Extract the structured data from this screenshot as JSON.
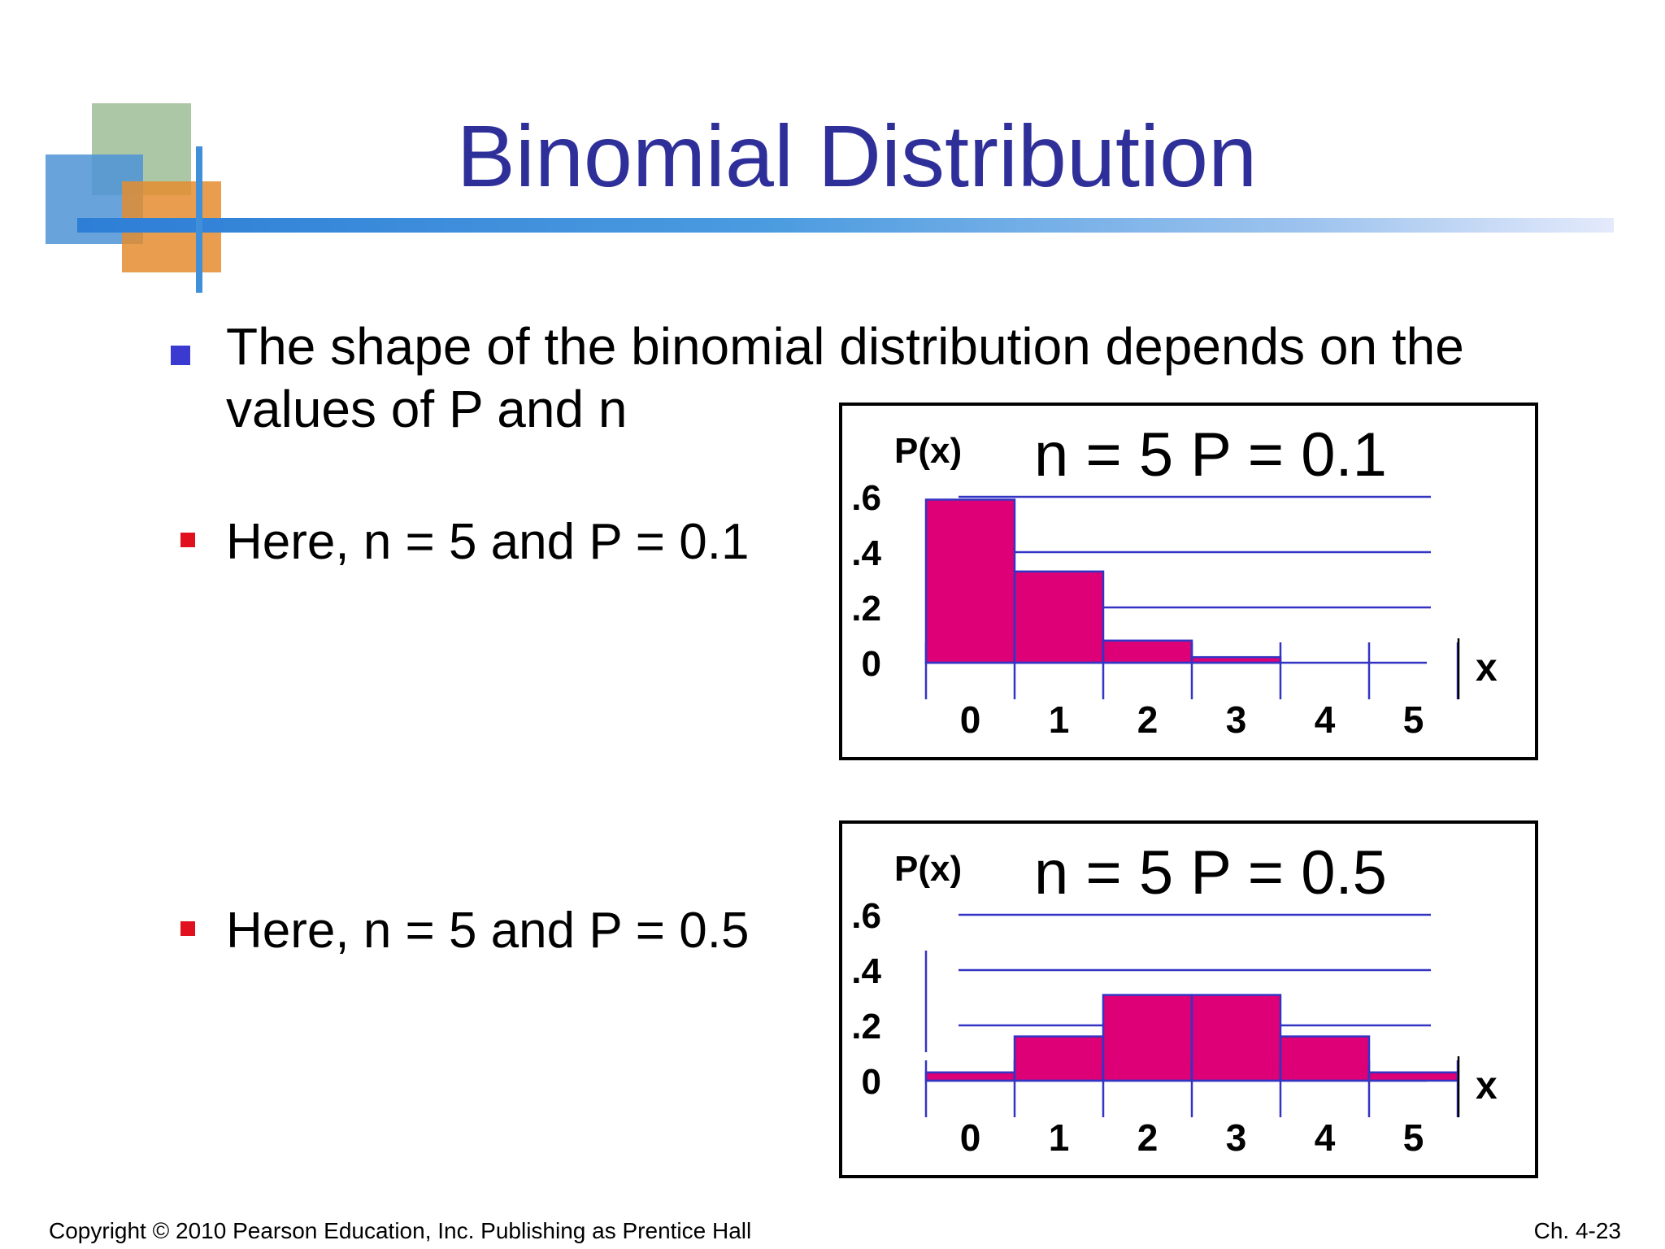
{
  "slide": {
    "title": "Binomial Distribution",
    "main_bullet": "The shape of the binomial distribution depends on the values of  P  and  n",
    "sub_bullets": [
      "Here, n = 5 and P = 0.1",
      "Here, n = 5 and P = 0.5"
    ],
    "footer_left": "Copyright © 2010 Pearson Education, Inc. Publishing as Prentice Hall",
    "footer_right": "Ch. 4-23"
  },
  "colors": {
    "title": "#2f2f9a",
    "bar_fill": "#dd0077",
    "bar_stroke": "#3434c4",
    "gridline": "#3434c4",
    "main_bullet": "#3a3ad0",
    "sub_bullet": "#e0101f"
  },
  "chart_data": [
    {
      "type": "bar",
      "title": "n = 5  P = 0.1",
      "ylabel": "P(x)",
      "xlabel": "x",
      "categories": [
        "0",
        "1",
        "2",
        "3",
        "4",
        "5"
      ],
      "values": [
        0.59,
        0.33,
        0.08,
        0.02,
        0.0,
        0.0
      ],
      "y_ticks": [
        ".6",
        ".4",
        ".2",
        "0"
      ],
      "y_tick_values": [
        0.6,
        0.4,
        0.2,
        0
      ],
      "ylim": [
        0,
        0.6
      ],
      "grid": true
    },
    {
      "type": "bar",
      "title": "n = 5  P = 0.5",
      "ylabel": "P(x)",
      "xlabel": "x",
      "categories": [
        "0",
        "1",
        "2",
        "3",
        "4",
        "5"
      ],
      "values": [
        0.03,
        0.16,
        0.31,
        0.31,
        0.16,
        0.03
      ],
      "y_ticks": [
        ".6",
        ".4",
        ".2",
        "0"
      ],
      "y_tick_values": [
        0.6,
        0.4,
        0.2,
        0
      ],
      "ylim": [
        0,
        0.6
      ],
      "grid": true
    }
  ]
}
